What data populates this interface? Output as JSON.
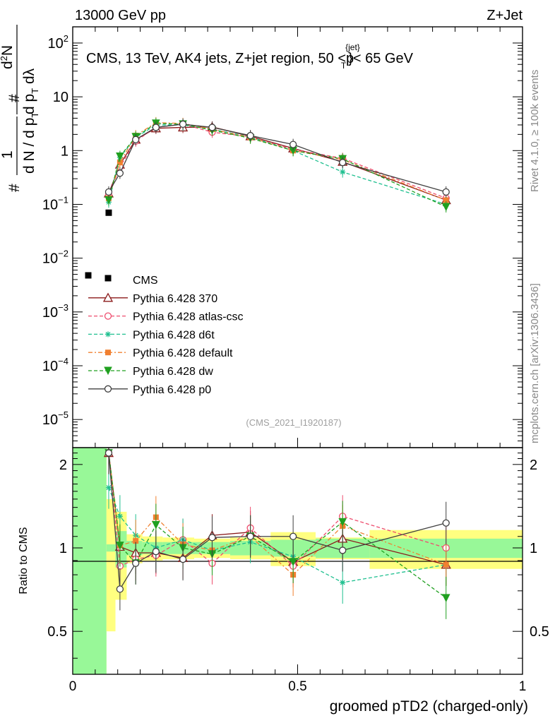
{
  "header": {
    "left": "13000 GeV pp",
    "right": "Z+Jet"
  },
  "side_labels": {
    "rivet": "Rivet 4.1.0, ≥ 100k events",
    "mcplots": "mcplots.cern.ch [arXiv:1306.3436]"
  },
  "chart_data": {
    "type": "line",
    "title": "CMS, 13 TeV, AK4 jets, Z+jet region, 50 <p",
    "title_sup": "{jet}",
    "title_sub": "T",
    "title_tail": "}< 65 GeV",
    "watermark": "(CMS_2021_I1920187)",
    "ylabel_upper": {
      "f1": "1",
      "f2": "d N / d p",
      "f2_sub": "T",
      "f3": "d",
      "f3_sup": "2",
      "f3_tail": "N",
      "f4": "d p",
      "f4_sub": "T",
      "f4_tail": " dλ",
      "hash": "#"
    },
    "ylabel_lower": "Ratio to CMS",
    "xlabel": "groomed pTD2 (charged-only)",
    "x_ticks": [
      "0",
      "0.5",
      "1"
    ],
    "xlim": [
      0,
      1
    ],
    "ylim_upper": [
      3e-06,
      200
    ],
    "ylim_lower": [
      0.35,
      2.3
    ],
    "y_upper_ticks": [
      {
        "base": "10",
        "exp": "2"
      },
      {
        "base": "10",
        "exp": ""
      },
      {
        "base": "1",
        "exp": ""
      },
      {
        "base": "10",
        "exp": "−1"
      },
      {
        "base": "10",
        "exp": "−2"
      },
      {
        "base": "10",
        "exp": "−3"
      },
      {
        "base": "10",
        "exp": "−4"
      },
      {
        "base": "10",
        "exp": "−5"
      }
    ],
    "y_lower_ticks": [
      "2",
      "1",
      "0.5"
    ],
    "bins": [
      0,
      0.075,
      0.095,
      0.12,
      0.155,
      0.2,
      0.27,
      0.35,
      0.44,
      0.54,
      0.66,
      1.0
    ],
    "cms": {
      "name": "CMS",
      "x": [
        0.08
      ],
      "y": [
        0.07
      ]
    },
    "band_inner": [
      5,
      0.03,
      0.15,
      0.06,
      0.05,
      0.05,
      0.05,
      0.06,
      0.07,
      0.08,
      0.08
    ],
    "band_outer": [
      5,
      0.5,
      0.35,
      0.12,
      0.1,
      0.09,
      0.08,
      0.09,
      0.14,
      0.09,
      0.16
    ],
    "series": [
      {
        "name": "Pythia 6.428 370",
        "color": "#8b1a1a",
        "dash": "",
        "marker": "triangle-open",
        "x": [
          0.08,
          0.105,
          0.14,
          0.185,
          0.245,
          0.31,
          0.395,
          0.49,
          0.6,
          0.83
        ],
        "y": [
          0.16,
          0.55,
          1.6,
          2.6,
          2.7,
          2.75,
          1.85,
          1.1,
          0.62,
          0.12
        ],
        "ratio": [
          2.2,
          1.01,
          0.96,
          0.96,
          0.92,
          1.11,
          1.14,
          0.89,
          1.08,
          0.87
        ]
      },
      {
        "name": "Pythia 6.428 atlas-csc",
        "color": "#ee4d6e",
        "dash": "5,3",
        "marker": "circle-open",
        "x": [
          0.08,
          0.105,
          0.14,
          0.185,
          0.245,
          0.31,
          0.395,
          0.49,
          0.6,
          0.83
        ],
        "y": [
          0.15,
          0.5,
          1.5,
          2.7,
          3.1,
          2.2,
          1.8,
          1.05,
          0.72,
          0.13
        ],
        "ratio": [
          2.2,
          0.86,
          0.91,
          0.94,
          1.07,
          0.88,
          1.18,
          0.86,
          1.3,
          1.0
        ]
      },
      {
        "name": "Pythia 6.428 d6t",
        "color": "#20c090",
        "dash": "5,3",
        "marker": "star",
        "x": [
          0.08,
          0.105,
          0.14,
          0.185,
          0.245,
          0.31,
          0.395,
          0.49,
          0.6,
          0.83
        ],
        "y": [
          0.11,
          0.75,
          1.75,
          3.0,
          3.0,
          2.5,
          1.8,
          1.0,
          0.4,
          0.1
        ],
        "ratio": [
          1.65,
          1.3,
          1.11,
          1.0,
          1.07,
          0.98,
          1.05,
          0.93,
          0.75,
          0.87
        ]
      },
      {
        "name": "Pythia 6.428 default",
        "color": "#f08030",
        "dash": "6,3,2,3",
        "marker": "square",
        "x": [
          0.08,
          0.105,
          0.14,
          0.185,
          0.245,
          0.31,
          0.395,
          0.49,
          0.6,
          0.83
        ],
        "y": [
          0.13,
          0.6,
          1.9,
          3.3,
          3.2,
          2.5,
          1.75,
          1.0,
          0.68,
          0.12
        ],
        "ratio": [
          2.2,
          1.02,
          1.06,
          1.29,
          1.03,
          0.98,
          1.1,
          0.8,
          1.2,
          0.87
        ]
      },
      {
        "name": "Pythia 6.428 dw",
        "color": "#20a020",
        "dash": "5,3",
        "marker": "triangle-down",
        "x": [
          0.08,
          0.105,
          0.14,
          0.185,
          0.245,
          0.31,
          0.395,
          0.49,
          0.6,
          0.83
        ],
        "y": [
          0.12,
          0.78,
          1.8,
          3.2,
          3.1,
          2.4,
          1.7,
          1.0,
          0.7,
          0.09
        ],
        "ratio": [
          2.2,
          1.02,
          0.88,
          1.21,
          1.0,
          0.95,
          1.1,
          0.89,
          1.24,
          0.66
        ]
      },
      {
        "name": "Pythia 6.428 p0",
        "color": "#404040",
        "dash": "",
        "marker": "circle-open",
        "x": [
          0.08,
          0.105,
          0.14,
          0.185,
          0.245,
          0.31,
          0.395,
          0.49,
          0.6,
          0.83
        ],
        "y": [
          0.17,
          0.38,
          1.6,
          2.7,
          3.1,
          2.7,
          1.9,
          1.3,
          0.6,
          0.17
        ],
        "ratio": [
          2.2,
          0.71,
          0.88,
          0.97,
          0.91,
          1.09,
          1.1,
          1.1,
          0.98,
          1.23
        ]
      }
    ]
  }
}
